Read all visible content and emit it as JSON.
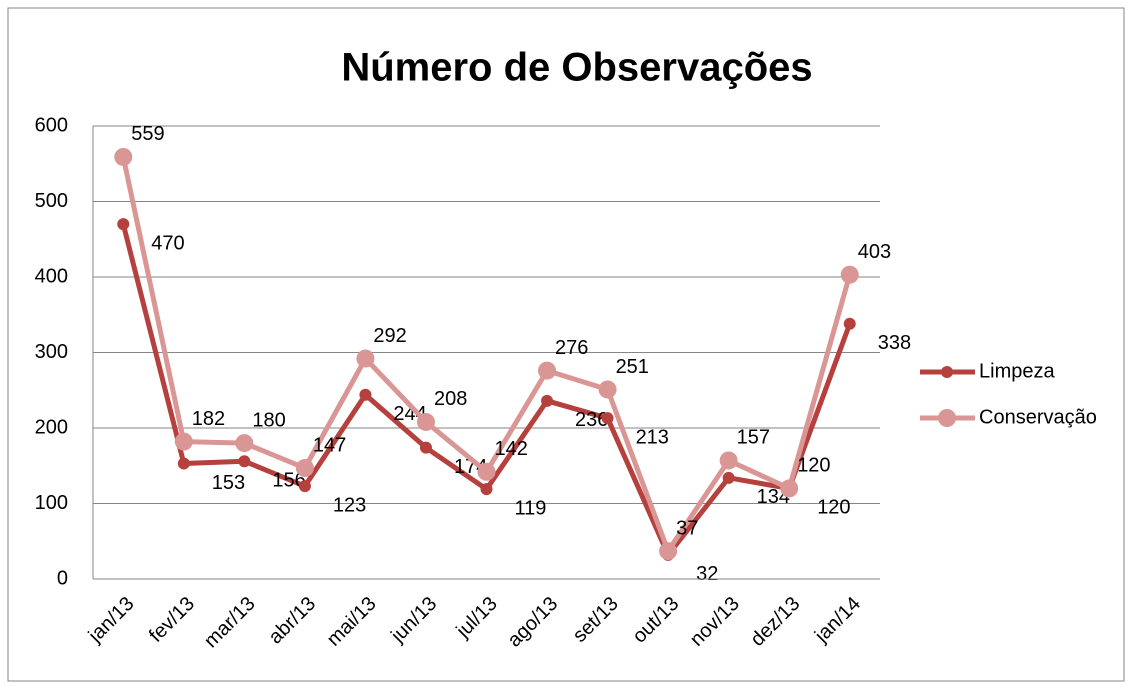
{
  "chart_data": {
    "type": "line",
    "title": "Número de Observações",
    "categories": [
      "jan/13",
      "fev/13",
      "mar/13",
      "abr/13",
      "mai/13",
      "jun/13",
      "jul/13",
      "ago/13",
      "set/13",
      "out/13",
      "nov/13",
      "dez/13",
      "jan/14"
    ],
    "series": [
      {
        "name": "Limpeza",
        "color": "#b5403d",
        "values": [
          470,
          153,
          156,
          123,
          244,
          174,
          119,
          236,
          213,
          32,
          134,
          120,
          338
        ]
      },
      {
        "name": "Conservação",
        "color": "#d99694",
        "values": [
          559,
          182,
          180,
          147,
          292,
          208,
          142,
          276,
          251,
          37,
          157,
          120,
          403
        ]
      }
    ],
    "ylim": [
      0,
      600
    ],
    "yticks": [
      0,
      100,
      200,
      300,
      400,
      500,
      600
    ],
    "grid": true,
    "legend": "right"
  }
}
